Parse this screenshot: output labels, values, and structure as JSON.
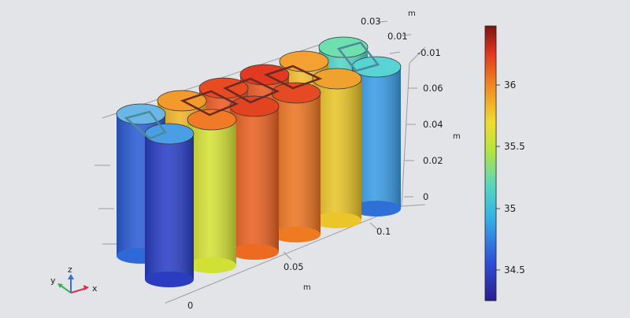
{
  "axes": {
    "unit_label": "m",
    "y_ticks": [
      "0",
      "0.05",
      "0.1"
    ],
    "x_ticks": [
      "0.03",
      "0.01",
      "-0.01"
    ],
    "z_ticks": [
      "0",
      "0.02",
      "0.04",
      "0.06"
    ]
  },
  "colorbar": {
    "ticks": [
      "34.5",
      "35",
      "35.5",
      "36"
    ],
    "min": 34.23,
    "max": 36.5
  },
  "triad": {
    "x_label": "x",
    "y_label": "y",
    "z_label": "z"
  },
  "colors": {
    "background": "#e3e4e7",
    "x_axis": "#d8324a",
    "y_axis": "#3cae5a",
    "z_axis": "#3a6fd0"
  }
}
